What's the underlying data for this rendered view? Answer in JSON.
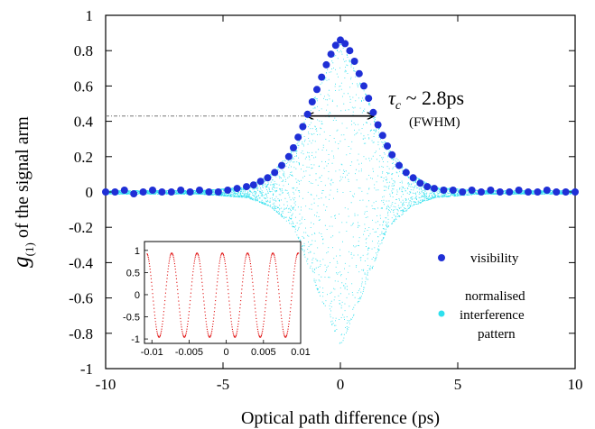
{
  "chart_data": {
    "type": "scatter",
    "xlabel": "Optical path difference (ps)",
    "ylabel_main": "g",
    "ylabel_sub": "(1)",
    "ylabel_rest": " of the signal arm",
    "xlim": [
      -10,
      10
    ],
    "ylim": [
      -1,
      1
    ],
    "x_ticks": [
      -10,
      -5,
      0,
      5,
      10
    ],
    "y_ticks": [
      -1,
      -0.8,
      -0.6,
      -0.4,
      -0.2,
      0,
      0.2,
      0.4,
      0.6,
      0.8,
      1
    ],
    "x_tick_labels": [
      "-10",
      "-5",
      "0",
      "5",
      "10"
    ],
    "y_tick_labels": [
      "-1",
      "-0.8",
      "-0.6",
      "-0.4",
      "-0.2",
      "0",
      "0.2",
      "0.4",
      "0.6",
      "0.8",
      "1"
    ],
    "grid": false,
    "series": [
      {
        "name": "visibility",
        "color": "#1f2fd6",
        "marker": "filled-circle",
        "x": [
          -10,
          -9.6,
          -9.2,
          -8.8,
          -8.4,
          -8.0,
          -7.6,
          -7.2,
          -6.8,
          -6.4,
          -6.0,
          -5.6,
          -5.2,
          -4.8,
          -4.4,
          -4.0,
          -3.7,
          -3.4,
          -3.1,
          -2.8,
          -2.5,
          -2.2,
          -2.0,
          -1.8,
          -1.6,
          -1.4,
          -1.2,
          -1.0,
          -0.8,
          -0.6,
          -0.4,
          -0.2,
          0.0,
          0.2,
          0.4,
          0.6,
          0.8,
          1.0,
          1.2,
          1.4,
          1.6,
          1.8,
          2.0,
          2.2,
          2.5,
          2.8,
          3.1,
          3.4,
          3.7,
          4.0,
          4.4,
          4.8,
          5.2,
          5.6,
          6.0,
          6.4,
          6.8,
          7.2,
          7.6,
          8.0,
          8.4,
          8.8,
          9.2,
          9.6,
          10
        ],
        "y": [
          0.0,
          0.0,
          0.01,
          -0.01,
          0.0,
          0.01,
          0.0,
          0.0,
          0.01,
          0.0,
          0.01,
          0.0,
          0.0,
          0.01,
          0.02,
          0.03,
          0.04,
          0.06,
          0.08,
          0.11,
          0.15,
          0.2,
          0.25,
          0.31,
          0.37,
          0.44,
          0.51,
          0.58,
          0.65,
          0.72,
          0.78,
          0.83,
          0.86,
          0.84,
          0.8,
          0.74,
          0.67,
          0.6,
          0.53,
          0.45,
          0.38,
          0.32,
          0.26,
          0.21,
          0.15,
          0.11,
          0.08,
          0.05,
          0.03,
          0.02,
          0.01,
          0.01,
          0.0,
          0.01,
          0.0,
          0.01,
          0.0,
          0.0,
          0.01,
          0.0,
          0.0,
          0.01,
          0.0,
          0.0,
          0.0
        ]
      },
      {
        "name_lines": [
          "normalised",
          "interference",
          "pattern"
        ],
        "color": "#2ee0ee",
        "marker": "dot",
        "envelope_peak_up": 0.85,
        "envelope_peak_down": -0.87,
        "envelope_x": [
          -10,
          -6,
          -4,
          -3,
          -2,
          -1,
          0,
          1,
          2,
          3,
          4,
          6,
          10
        ],
        "envelope_upper": [
          0.01,
          0.01,
          0.03,
          0.1,
          0.25,
          0.58,
          0.85,
          0.58,
          0.25,
          0.1,
          0.03,
          0.01,
          0.01
        ],
        "envelope_lower": [
          -0.01,
          -0.01,
          -0.03,
          -0.08,
          -0.2,
          -0.55,
          -0.87,
          -0.55,
          -0.2,
          -0.08,
          -0.03,
          -0.01,
          -0.01
        ]
      }
    ],
    "legend": {
      "placement": "right",
      "visibility_label": "visibility",
      "pattern_label_lines": [
        "normalised",
        "interference",
        "pattern"
      ]
    },
    "annotations": {
      "tau": "τ",
      "tau_sub": "c",
      "tau_value": " ~ 2.8ps",
      "fwhm": "(FWHM)",
      "fwhm_level": 0.43,
      "fwhm_left": -1.4,
      "fwhm_right": 1.4
    },
    "inset": {
      "type": "scatter",
      "color": "#e01010",
      "xlim": [
        -0.011,
        0.01
      ],
      "ylim": [
        -1.1,
        1.2
      ],
      "x_ticks": [
        -0.01,
        -0.005,
        0,
        0.005,
        0.01
      ],
      "x_tick_labels": [
        "-0.01",
        "-0.005",
        "0",
        "0.005",
        "0.01"
      ],
      "y_ticks": [
        -1,
        -0.5,
        0,
        0.5,
        1
      ],
      "y_tick_labels": [
        "-1",
        "-0.5",
        "0",
        "0.5",
        "1"
      ],
      "period": 0.0034,
      "amplitude": 0.95
    }
  }
}
